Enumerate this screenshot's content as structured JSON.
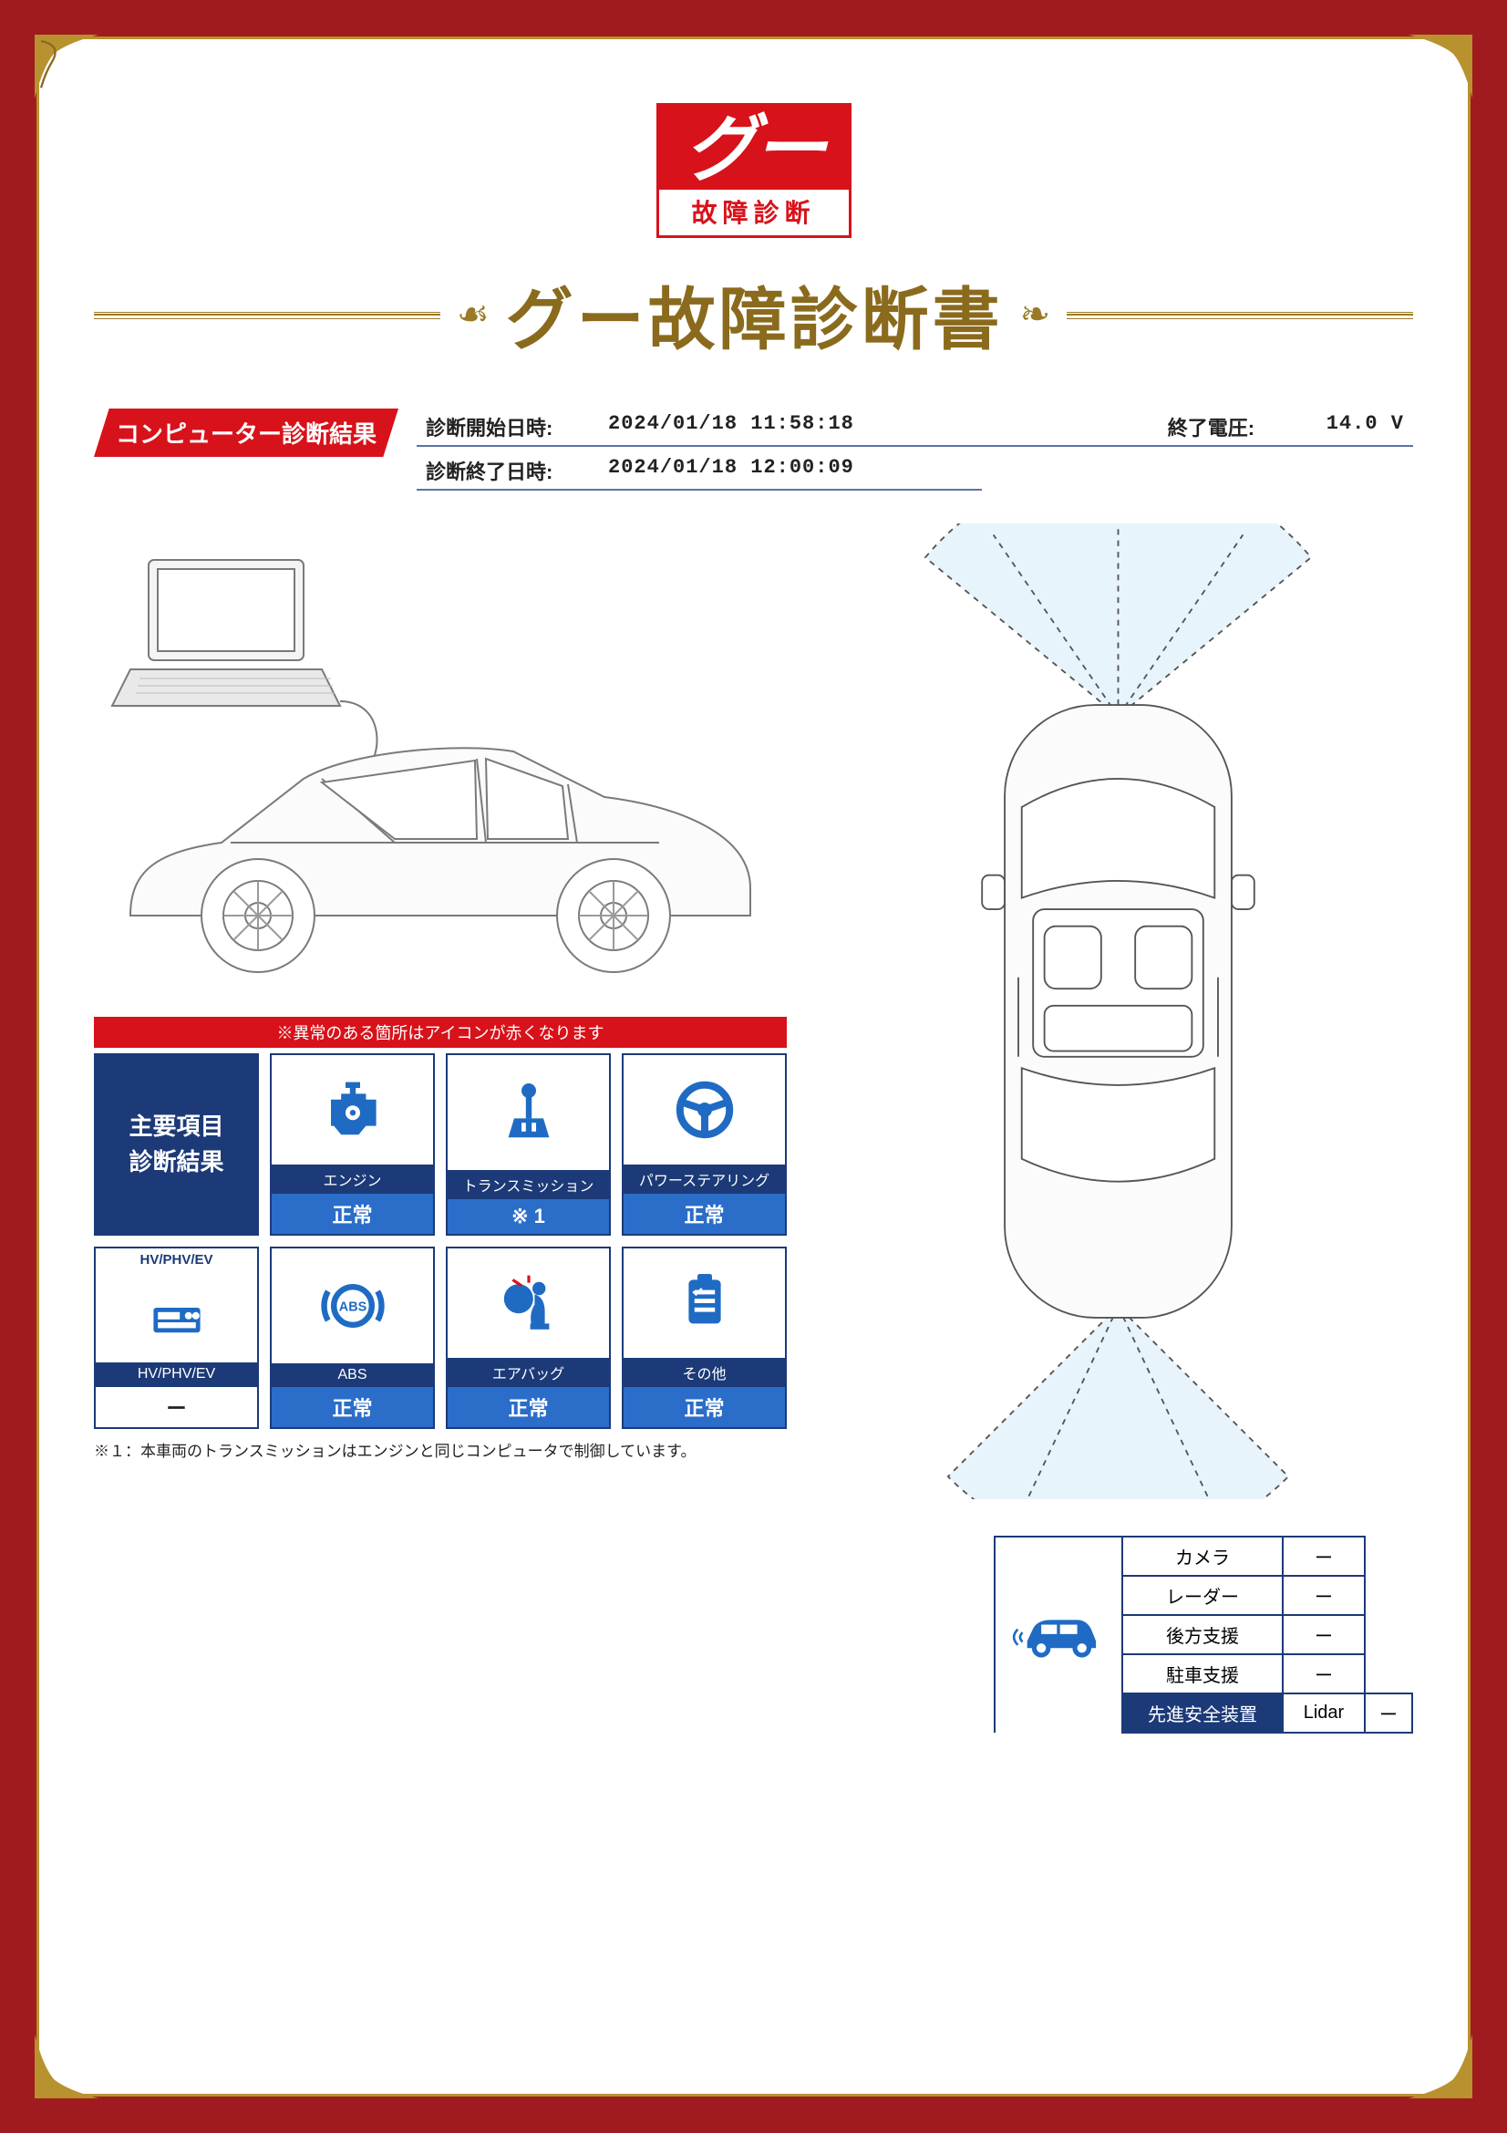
{
  "logo": {
    "brand": "グー",
    "sub": "故障診断"
  },
  "title": "グー故障診断書",
  "section_tab": "コンピューター診断結果",
  "meta": {
    "start_label": "診断開始日時:",
    "start_value": "2024/01/18 11:58:18",
    "volt_label": "終了電圧:",
    "volt_value": "14.0 V",
    "end_label": "診断終了日時:",
    "end_value": "2024/01/18 12:00:09"
  },
  "panel": {
    "strip": "※異常のある箇所はアイコンが赤くなります",
    "header_line1": "主要項目",
    "header_line2": "診断結果",
    "cells": [
      {
        "label": "エンジン",
        "status": "正常",
        "icon": "engine"
      },
      {
        "label": "トランスミッション",
        "status": "※ 1",
        "icon": "transmission"
      },
      {
        "label": "パワーステアリング",
        "status": "正常",
        "icon": "steering"
      },
      {
        "label": "HV/PHV/EV",
        "status": "ー",
        "icon": "hvev",
        "white": true,
        "sublabel": "HV/PHV/EV"
      },
      {
        "label": "ABS",
        "status": "正常",
        "icon": "abs"
      },
      {
        "label": "エアバッグ",
        "status": "正常",
        "icon": "airbag"
      },
      {
        "label": "その他",
        "status": "正常",
        "icon": "other"
      }
    ],
    "footnote": "※１：本車両のトランスミッションはエンジンと同じコンピュータで制御しています。"
  },
  "adas": {
    "header": "先進安全装置",
    "rows": [
      {
        "name": "カメラ",
        "value": "ー"
      },
      {
        "name": "レーダー",
        "value": "ー"
      },
      {
        "name": "後方支援",
        "value": "ー"
      },
      {
        "name": "駐車支援",
        "value": "ー"
      },
      {
        "name": "Lidar",
        "value": "ー"
      }
    ]
  },
  "colors": {
    "red": "#d8121a",
    "navy": "#1c3a78",
    "blue": "#2a6ec9",
    "gold": "#9a7a25",
    "icon": "#1f6bc4"
  }
}
